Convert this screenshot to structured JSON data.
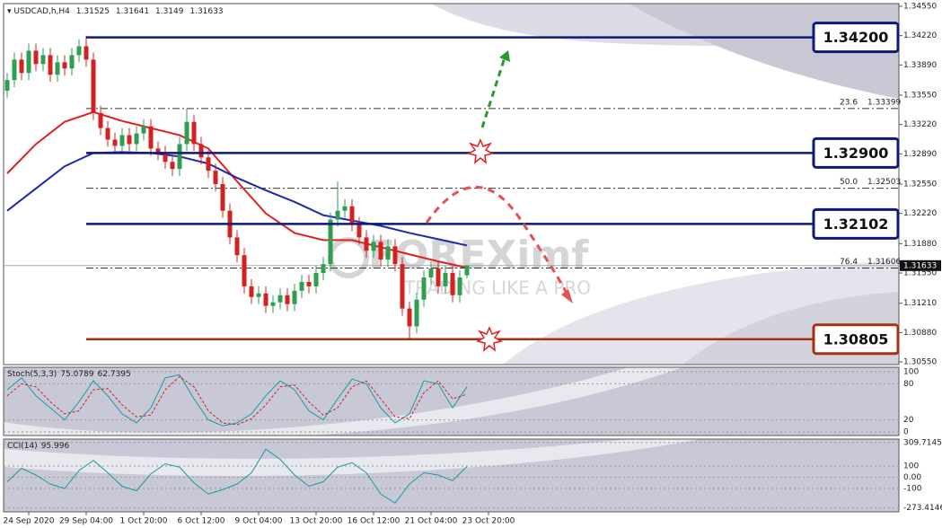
{
  "chart_data": {
    "type": "candlestick",
    "symbol": "USDCAD,h,H4",
    "watermark": {
      "brand": "FOREXimf",
      "tagline": "TRADING LIKE A PRO"
    },
    "up_color": "#2e9e4f",
    "down_color": "#d42020",
    "x": [
      0,
      1,
      2,
      3,
      4,
      5,
      6,
      7,
      8,
      9,
      10,
      11,
      12,
      13,
      14,
      15,
      16,
      17,
      18,
      19,
      20,
      21,
      22,
      23,
      24,
      25,
      26,
      27,
      28,
      29,
      30,
      31,
      32,
      33,
      34,
      35,
      36,
      37,
      38,
      39,
      40,
      41,
      42,
      43,
      44,
      45,
      46,
      47,
      48,
      49,
      50,
      51,
      52,
      53,
      54,
      55,
      56,
      57,
      58,
      59,
      60,
      61,
      62,
      63,
      64
    ],
    "open": [
      1.336,
      1.3372,
      1.3395,
      1.338,
      1.3405,
      1.339,
      1.34,
      1.3378,
      1.3392,
      1.3385,
      1.34,
      1.341,
      1.3395,
      1.3335,
      1.3318,
      1.3305,
      1.3298,
      1.331,
      1.33,
      1.3312,
      1.332,
      1.3295,
      1.329,
      1.328,
      1.3272,
      1.33,
      1.3325,
      1.33,
      1.3285,
      1.327,
      1.3255,
      1.3225,
      1.3195,
      1.3175,
      1.314,
      1.3128,
      1.3132,
      1.3118,
      1.3122,
      1.313,
      1.312,
      1.3135,
      1.3145,
      1.314,
      1.3155,
      1.3165,
      1.3215,
      1.3225,
      1.323,
      1.321,
      1.3195,
      1.318,
      1.319,
      1.317,
      1.3185,
      1.3165,
      1.3115,
      1.3095,
      1.3125,
      1.315,
      1.316,
      1.314,
      1.3155,
      1.313,
      1.31525
    ],
    "high": [
      1.338,
      1.3403,
      1.3403,
      1.3413,
      1.3413,
      1.3408,
      1.3408,
      1.34,
      1.34,
      1.3408,
      1.3418,
      1.3422,
      1.3403,
      1.3343,
      1.3326,
      1.3313,
      1.3318,
      1.3318,
      1.332,
      1.3328,
      1.3328,
      1.3303,
      1.3298,
      1.3288,
      1.3308,
      1.334,
      1.3333,
      1.3308,
      1.3293,
      1.3278,
      1.3263,
      1.3233,
      1.3203,
      1.3183,
      1.3148,
      1.314,
      1.314,
      1.313,
      1.3138,
      1.3138,
      1.3143,
      1.3153,
      1.3153,
      1.3163,
      1.3173,
      1.3223,
      1.3258,
      1.3238,
      1.3238,
      1.3218,
      1.3203,
      1.3198,
      1.3198,
      1.3193,
      1.3193,
      1.3173,
      1.3123,
      1.3133,
      1.3158,
      1.3168,
      1.3168,
      1.3163,
      1.3163,
      1.3158,
      1.31641
    ],
    "low": [
      1.3352,
      1.3364,
      1.3372,
      1.3372,
      1.3382,
      1.3382,
      1.337,
      1.337,
      1.3377,
      1.3377,
      1.3392,
      1.3387,
      1.3327,
      1.331,
      1.3297,
      1.329,
      1.329,
      1.3292,
      1.3292,
      1.3304,
      1.3287,
      1.3282,
      1.3272,
      1.3264,
      1.3264,
      1.3292,
      1.3292,
      1.3277,
      1.3262,
      1.3247,
      1.3217,
      1.3187,
      1.3167,
      1.3132,
      1.312,
      1.312,
      1.311,
      1.311,
      1.3114,
      1.3112,
      1.3112,
      1.3127,
      1.3132,
      1.3132,
      1.3147,
      1.3157,
      1.3207,
      1.3217,
      1.3202,
      1.3187,
      1.3172,
      1.3172,
      1.3162,
      1.3162,
      1.3157,
      1.3107,
      1.308,
      1.3087,
      1.3117,
      1.3142,
      1.3132,
      1.3132,
      1.3122,
      1.3122,
      1.3149
    ],
    "close": [
      1.3372,
      1.3395,
      1.338,
      1.3405,
      1.339,
      1.34,
      1.3378,
      1.3392,
      1.3385,
      1.34,
      1.341,
      1.3395,
      1.3335,
      1.3318,
      1.3305,
      1.3298,
      1.331,
      1.33,
      1.3312,
      1.332,
      1.3295,
      1.329,
      1.328,
      1.3272,
      1.33,
      1.3325,
      1.33,
      1.3285,
      1.327,
      1.3255,
      1.3225,
      1.3195,
      1.3175,
      1.314,
      1.3128,
      1.3132,
      1.3118,
      1.3122,
      1.313,
      1.312,
      1.3135,
      1.3145,
      1.314,
      1.3155,
      1.3165,
      1.3215,
      1.3225,
      1.323,
      1.321,
      1.3195,
      1.318,
      1.319,
      1.317,
      1.3185,
      1.3165,
      1.3115,
      1.3095,
      1.3125,
      1.315,
      1.316,
      1.314,
      1.3155,
      1.313,
      1.315,
      1.31633
    ],
    "xlim": [
      -0.5,
      124.125
    ],
    "xticks": [
      {
        "value": 3,
        "label": "24 Sep 2020"
      },
      {
        "value": 11,
        "label": "29 Sep 04:00"
      },
      {
        "value": 19,
        "label": "1 Oct 20:00"
      },
      {
        "value": 27,
        "label": "6 Oct 12:00"
      },
      {
        "value": 35,
        "label": "9 Oct 04:00"
      },
      {
        "value": 43,
        "label": "13 Oct 20:00"
      },
      {
        "value": 51,
        "label": "16 Oct 12:00"
      },
      {
        "value": 59,
        "label": "21 Oct 04:00"
      },
      {
        "value": 67,
        "label": "23 Oct 20:00"
      }
    ],
    "ylim": [
      1.3052,
      1.3458
    ],
    "yticks": [
      {
        "value": 1.3455,
        "label": "1.34550"
      },
      {
        "value": 1.3422,
        "label": "1.34220"
      },
      {
        "value": 1.3389,
        "label": "1.33890"
      },
      {
        "value": 1.3355,
        "label": "1.33550"
      },
      {
        "value": 1.3322,
        "label": "1.33220"
      },
      {
        "value": 1.3289,
        "label": "1.32890"
      },
      {
        "value": 1.3255,
        "label": "1.32550"
      },
      {
        "value": 1.3222,
        "label": "1.32220"
      },
      {
        "value": 1.3188,
        "label": "1.31880"
      },
      {
        "value": 1.3155,
        "label": "1.31550"
      },
      {
        "value": 1.3121,
        "label": "1.31210"
      },
      {
        "value": 1.3088,
        "label": "1.30880"
      },
      {
        "value": 1.3055,
        "label": "1.30550"
      }
    ],
    "moving_averages": [
      {
        "color": "#e02020",
        "x": [
          0,
          4,
          8,
          12,
          16,
          20,
          24,
          28,
          32,
          36,
          40,
          44,
          48,
          52,
          56,
          60,
          64
        ],
        "values": [
          1.3267,
          1.33,
          1.3325,
          1.3336,
          1.3326,
          1.3318,
          1.331,
          1.3295,
          1.3258,
          1.3222,
          1.32,
          1.3192,
          1.3192,
          1.3184,
          1.3176,
          1.3168,
          1.3161
        ]
      },
      {
        "color": "#1c2aa8",
        "x": [
          0,
          4,
          8,
          12,
          16,
          20,
          24,
          28,
          32,
          36,
          40,
          44,
          48,
          52,
          56,
          60,
          64
        ],
        "values": [
          1.3225,
          1.325,
          1.3275,
          1.329,
          1.3291,
          1.329,
          1.3286,
          1.3278,
          1.3262,
          1.3248,
          1.3235,
          1.322,
          1.3214,
          1.3208,
          1.32,
          1.3193,
          1.3186
        ]
      }
    ],
    "levels": [
      {
        "value": 1.342,
        "label": "1.34200",
        "color": "#0d1a7a"
      },
      {
        "value": 1.329,
        "label": "1.32900",
        "color": "#0d1a7a"
      },
      {
        "value": 1.32102,
        "label": "1.32102",
        "color": "#0d1a7a"
      },
      {
        "value": 1.30805,
        "label": "1.30805",
        "color": "#a33214"
      }
    ],
    "fibonacci": [
      {
        "ratio": 23.6,
        "price": 1.33399
      },
      {
        "ratio": {
          "value": 50,
          "label": "50.0"
        },
        "price": 1.32503
      },
      {
        "ratio": 76.4,
        "price": 1.31606
      }
    ],
    "indicators": [
      {
        "name": "Stoch(5,3,3)",
        "ylim": [
          -6,
          107.5
        ],
        "yticks": [
          100,
          80,
          20,
          0
        ],
        "series": [
          {
            "color": "#1a9aa0",
            "x": [
              0,
              2,
              4,
              6,
              8,
              10,
              12,
              14,
              16,
              18,
              20,
              22,
              24,
              26,
              28,
              30,
              32,
              34,
              36,
              38,
              40,
              42,
              44,
              46,
              48,
              50,
              52,
              54,
              56,
              58,
              60,
              62,
              64
            ],
            "values": [
              70,
              90,
              60,
              40,
              20,
              50,
              85,
              60,
              30,
              15,
              40,
              90,
              95,
              55,
              20,
              10,
              15,
              30,
              60,
              85,
              70,
              35,
              20,
              55,
              88,
              80,
              40,
              15,
              30,
              85,
              80,
              40,
              75.0789
            ]
          },
          {
            "color": "#d42020",
            "dashed": true,
            "x": [
              0,
              2,
              4,
              6,
              8,
              10,
              12,
              14,
              16,
              18,
              20,
              22,
              24,
              26,
              28,
              30,
              32,
              34,
              36,
              38,
              40,
              42,
              44,
              46,
              48,
              50,
              52,
              54,
              56,
              58,
              60,
              62,
              64
            ],
            "values": [
              60,
              80,
              75,
              50,
              30,
              35,
              70,
              72,
              45,
              25,
              28,
              70,
              92,
              75,
              35,
              15,
              12,
              22,
              45,
              75,
              78,
              50,
              28,
              40,
              75,
              85,
              55,
              25,
              22,
              65,
              85,
              55,
              62.7395
            ]
          }
        ]
      },
      {
        "name": "CCI(14)",
        "ylim": [
          -308,
          340
        ],
        "yticks": [
          309.7145,
          100,
          {
            "value": 0,
            "label": "0.00"
          },
          -100,
          -273.4146
        ],
        "series": [
          {
            "color": "#1a9aa0",
            "x": [
              0,
              2,
              4,
              6,
              8,
              10,
              12,
              14,
              16,
              18,
              20,
              22,
              24,
              26,
              28,
              30,
              32,
              34,
              36,
              38,
              40,
              42,
              44,
              46,
              48,
              50,
              52,
              54,
              56,
              58,
              60,
              62,
              64
            ],
            "values": [
              -40,
              80,
              20,
              -60,
              -100,
              60,
              150,
              40,
              -80,
              -120,
              30,
              120,
              90,
              -50,
              -150,
              -110,
              -60,
              40,
              250,
              160,
              20,
              -80,
              -40,
              90,
              130,
              40,
              -150,
              -230,
              -60,
              40,
              20,
              -30,
              95.996
            ]
          }
        ]
      }
    ]
  }
}
